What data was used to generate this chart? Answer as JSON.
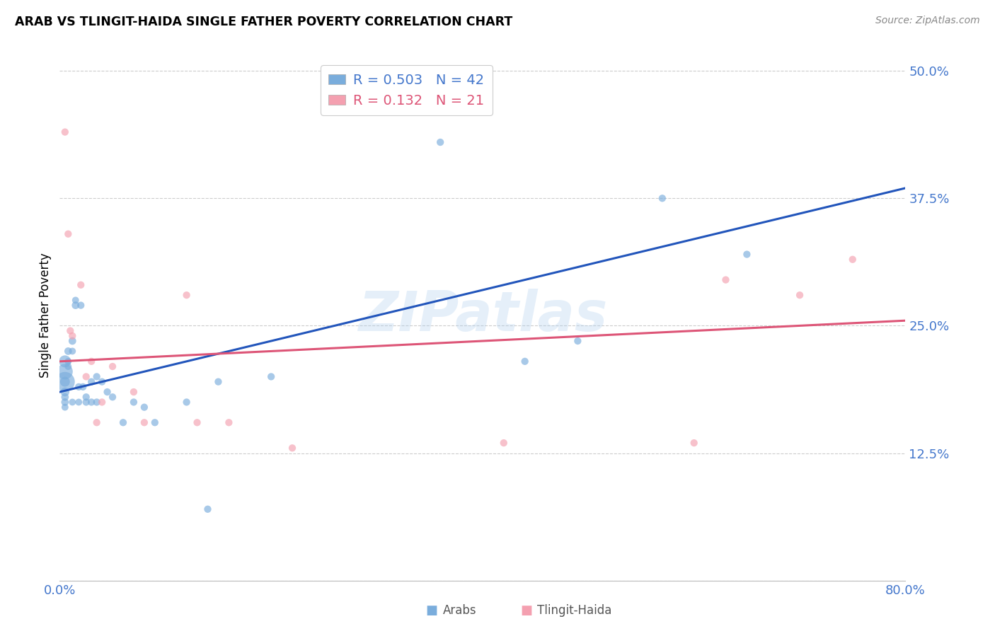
{
  "title": "ARAB VS TLINGIT-HAIDA SINGLE FATHER POVERTY CORRELATION CHART",
  "source": "Source: ZipAtlas.com",
  "ylabel": "Single Father Poverty",
  "yticks": [
    0.0,
    0.125,
    0.25,
    0.375,
    0.5
  ],
  "ytick_labels": [
    "",
    "12.5%",
    "25.0%",
    "37.5%",
    "50.0%"
  ],
  "xlim": [
    0.0,
    0.8
  ],
  "ylim": [
    0.0,
    0.52
  ],
  "watermark": "ZIPatlas",
  "arab_R": 0.503,
  "arab_N": 42,
  "tlingit_R": 0.132,
  "tlingit_N": 21,
  "arab_color": "#7aaddc",
  "tlingit_color": "#f4a0b0",
  "arab_line_color": "#2255bb",
  "tlingit_line_color": "#dd5577",
  "tick_label_color": "#4477cc",
  "arab_x": [
    0.005,
    0.005,
    0.005,
    0.005,
    0.005,
    0.005,
    0.005,
    0.005,
    0.008,
    0.008,
    0.008,
    0.012,
    0.012,
    0.012,
    0.015,
    0.015,
    0.018,
    0.018,
    0.02,
    0.022,
    0.025,
    0.025,
    0.03,
    0.03,
    0.035,
    0.035,
    0.04,
    0.045,
    0.05,
    0.06,
    0.07,
    0.08,
    0.09,
    0.12,
    0.14,
    0.15,
    0.2,
    0.36,
    0.44,
    0.49,
    0.57,
    0.65
  ],
  "arab_y": [
    0.195,
    0.205,
    0.215,
    0.195,
    0.185,
    0.175,
    0.18,
    0.17,
    0.225,
    0.215,
    0.21,
    0.235,
    0.225,
    0.175,
    0.27,
    0.275,
    0.19,
    0.175,
    0.27,
    0.19,
    0.175,
    0.18,
    0.195,
    0.175,
    0.2,
    0.175,
    0.195,
    0.185,
    0.18,
    0.155,
    0.175,
    0.17,
    0.155,
    0.175,
    0.07,
    0.195,
    0.2,
    0.43,
    0.215,
    0.235,
    0.375,
    0.32
  ],
  "arab_size": [
    400,
    250,
    150,
    100,
    80,
    60,
    60,
    50,
    60,
    50,
    50,
    60,
    50,
    50,
    60,
    50,
    55,
    50,
    55,
    55,
    55,
    55,
    55,
    55,
    55,
    55,
    55,
    55,
    55,
    55,
    55,
    55,
    55,
    55,
    55,
    55,
    55,
    55,
    55,
    55,
    55,
    55
  ],
  "tlingit_x": [
    0.005,
    0.008,
    0.01,
    0.012,
    0.02,
    0.025,
    0.03,
    0.035,
    0.04,
    0.05,
    0.07,
    0.08,
    0.12,
    0.13,
    0.16,
    0.22,
    0.42,
    0.6,
    0.63,
    0.7,
    0.75
  ],
  "tlingit_y": [
    0.44,
    0.34,
    0.245,
    0.24,
    0.29,
    0.2,
    0.215,
    0.155,
    0.175,
    0.21,
    0.185,
    0.155,
    0.28,
    0.155,
    0.155,
    0.13,
    0.135,
    0.135,
    0.295,
    0.28,
    0.315
  ],
  "tlingit_size": [
    55,
    55,
    55,
    55,
    55,
    55,
    55,
    55,
    55,
    55,
    55,
    55,
    55,
    55,
    55,
    55,
    55,
    55,
    55,
    55,
    55
  ],
  "arab_line_x0": 0.0,
  "arab_line_y0": 0.185,
  "arab_line_x1": 0.8,
  "arab_line_y1": 0.385,
  "tlingit_line_x0": 0.0,
  "tlingit_line_y0": 0.215,
  "tlingit_line_x1": 0.8,
  "tlingit_line_y1": 0.255
}
